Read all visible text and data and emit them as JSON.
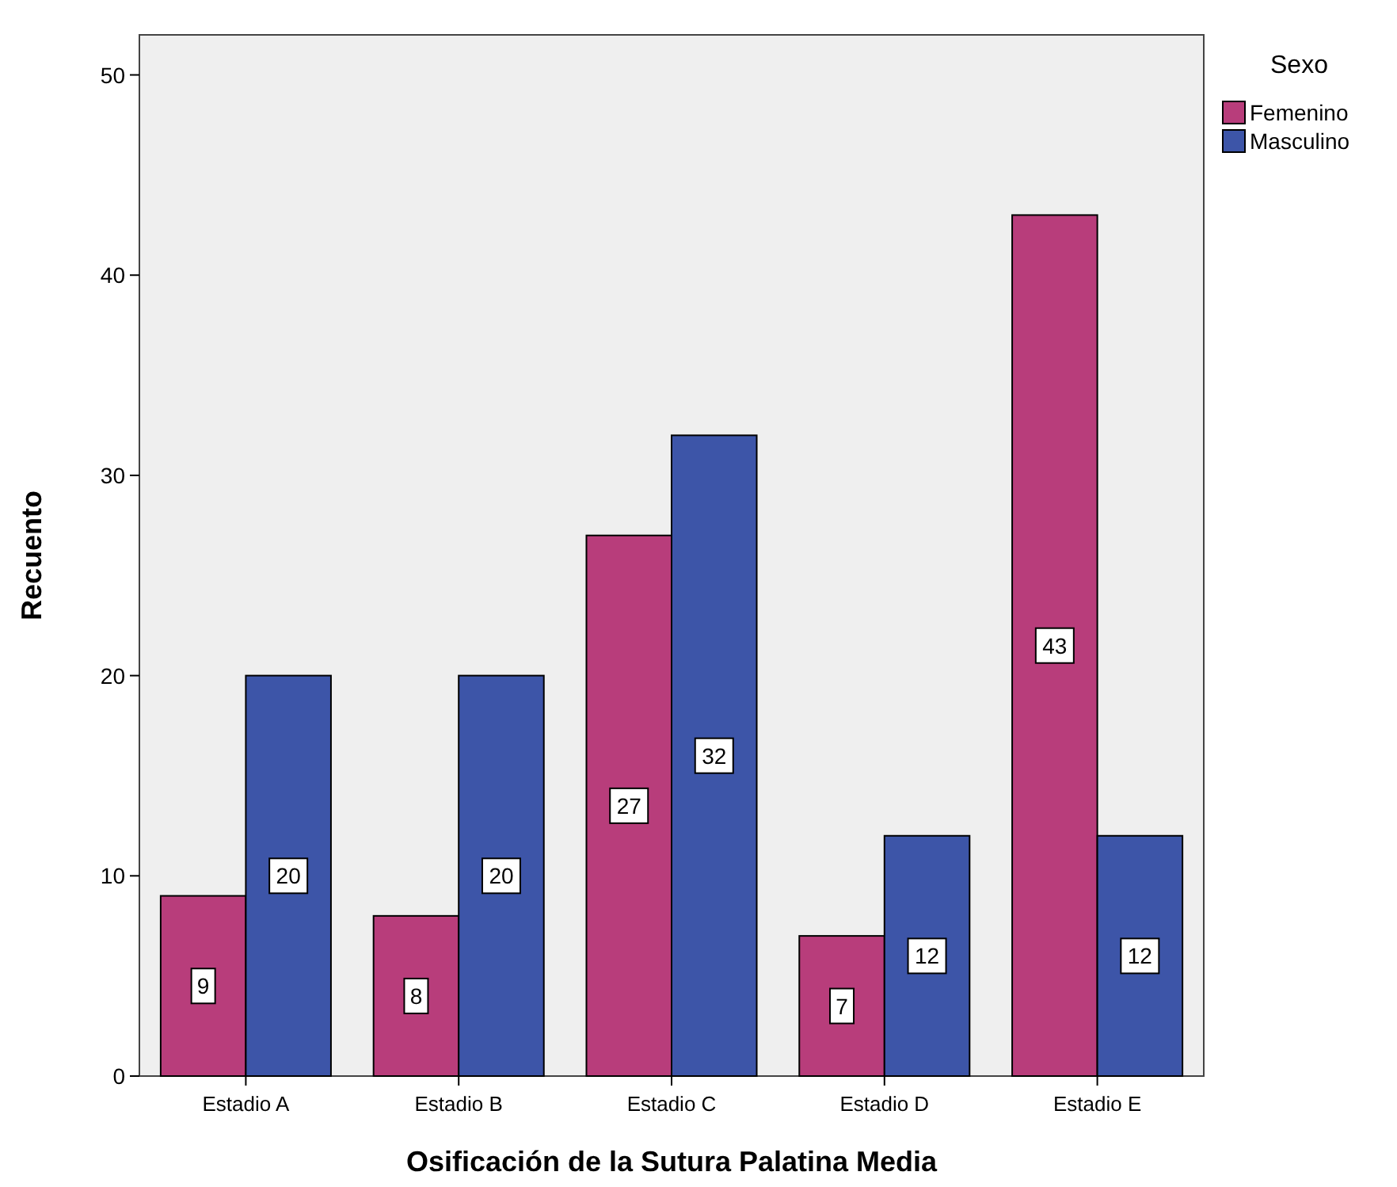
{
  "chart_data": {
    "type": "bar",
    "xlabel": "Osificación de la Sutura Palatina Media",
    "ylabel": "Recuento",
    "legend_title": "Sexo",
    "categories": [
      "Estadio A",
      "Estadio B",
      "Estadio C",
      "Estadio D",
      "Estadio E"
    ],
    "series": [
      {
        "name": "Femenino",
        "color": "#b83d7b",
        "values": [
          9,
          8,
          27,
          7,
          43
        ]
      },
      {
        "name": "Masculino",
        "color": "#3d55a8",
        "values": [
          20,
          20,
          32,
          12,
          12
        ]
      }
    ],
    "ylim": [
      0,
      52
    ],
    "yticks": [
      0,
      10,
      20,
      30,
      40,
      50
    ],
    "data_labels": true,
    "legend": "right",
    "grid": false
  }
}
